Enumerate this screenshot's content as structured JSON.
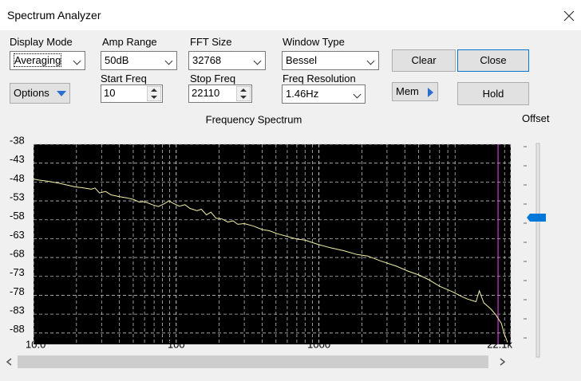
{
  "window": {
    "title": "Spectrum Analyzer"
  },
  "controls": {
    "display_mode": {
      "label": "Display Mode",
      "value": "Averaging"
    },
    "amp_range": {
      "label": "Amp Range",
      "value": "50dB"
    },
    "fft_size": {
      "label": "FFT Size",
      "value": "32768"
    },
    "window_type": {
      "label": "Window Type",
      "value": "Bessel"
    },
    "start_freq": {
      "label": "Start Freq",
      "value": "10"
    },
    "stop_freq": {
      "label": "Stop Freq",
      "value": "22110"
    },
    "freq_resolution": {
      "label": "Freq Resolution",
      "value": "1.46Hz"
    },
    "buttons": {
      "clear": "Clear",
      "close": "Close",
      "options": "Options",
      "mem": "Mem",
      "hold": "Hold"
    },
    "offset_label": "Offset"
  },
  "chart_data": {
    "type": "line",
    "title": "Frequency Spectrum",
    "color": "#f4f0a8",
    "x": [
      10,
      11,
      12.6,
      15,
      19.6,
      22,
      25.4,
      27,
      29,
      32,
      35,
      40,
      45,
      50,
      55,
      60,
      68,
      75,
      82,
      89,
      95,
      105,
      115,
      125,
      140,
      150,
      163,
      175,
      190,
      210,
      230,
      250,
      270,
      300,
      350,
      400,
      450,
      510,
      600,
      700,
      800,
      980,
      1200,
      1500,
      1850,
      2200,
      2700,
      3500,
      4200,
      5000,
      5830,
      7000,
      8540,
      10000,
      11000,
      12600,
      13300,
      14300,
      16000,
      17400,
      19000,
      19800,
      21000
    ],
    "values": [
      -47.2,
      -47.5,
      -47.8,
      -48.3,
      -49.3,
      -49.5,
      -49.9,
      -49.6,
      -50.9,
      -50.5,
      -51.4,
      -51.9,
      -52.2,
      -52.6,
      -53.3,
      -53.2,
      -54.0,
      -54.5,
      -53.8,
      -53.0,
      -53.6,
      -54.4,
      -54.0,
      -55.0,
      -55.6,
      -55.2,
      -56.7,
      -56.0,
      -57.6,
      -57.8,
      -58.6,
      -58.3,
      -59.2,
      -59.0,
      -59.7,
      -60.6,
      -60.9,
      -61.7,
      -62.4,
      -63.1,
      -63.4,
      -64.5,
      -65.4,
      -66.2,
      -67.2,
      -67.6,
      -68.9,
      -70.3,
      -71.6,
      -72.6,
      -73.8,
      -75.6,
      -77.0,
      -78.3,
      -79.0,
      -79.7,
      -76.8,
      -80.0,
      -81.6,
      -83.2,
      -85.5,
      -88.0,
      -90.5
    ],
    "log_x": true,
    "xlim": [
      10,
      22100
    ],
    "xticks": [
      {
        "value": 10,
        "label": "10.0"
      },
      100,
      1000,
      {
        "value": 22100,
        "label": "22.1k"
      }
    ],
    "minor_xticks": [
      20,
      30,
      40,
      50,
      60,
      70,
      80,
      90,
      200,
      300,
      400,
      500,
      600,
      700,
      800,
      900,
      2000,
      3000,
      4000,
      5000,
      6000,
      7000,
      8000,
      9000,
      20000
    ],
    "ylim": [
      -91,
      -38
    ],
    "yticks": [
      -38,
      -43,
      -48,
      -53,
      -58,
      -63,
      -68,
      -73,
      -78,
      -83,
      -88
    ],
    "grid": true,
    "cursor_x": 18000,
    "cursor_color": "#ff40ff"
  }
}
